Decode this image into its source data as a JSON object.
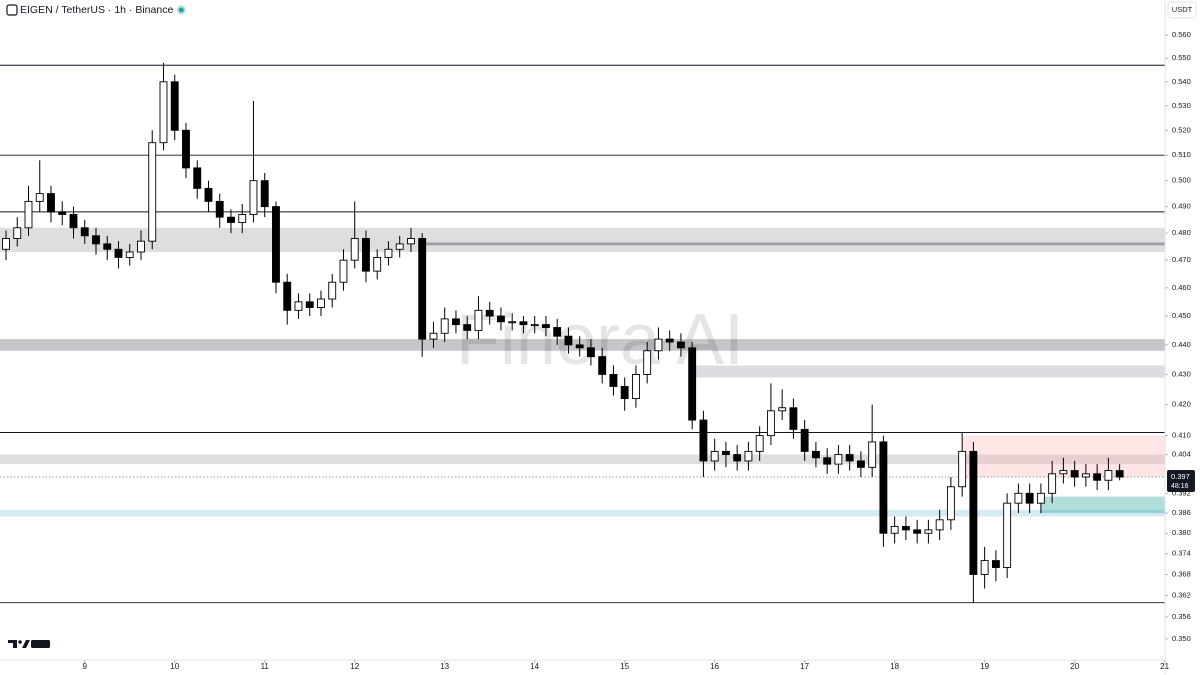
{
  "chart_data": {
    "type": "candlestick",
    "title": "EIGEN / TetherUS · 1h · Binance",
    "currency": "USDT",
    "watermark": "Finora AI",
    "countdown": "48:16",
    "log_scale": true,
    "up_color": "#ffffff",
    "down_color": "#000000",
    "x": [
      -21,
      -18,
      -15,
      -12,
      -9,
      -6,
      -3,
      0,
      3,
      6,
      9,
      12,
      15,
      18,
      21,
      24,
      27,
      30,
      33,
      36,
      39,
      42,
      45,
      48,
      51,
      54,
      57,
      60,
      63,
      66,
      69,
      72,
      75,
      78,
      81,
      84,
      87,
      90,
      93,
      96,
      99,
      102,
      105,
      108,
      111,
      114,
      117,
      120,
      123,
      126,
      129,
      132,
      135,
      138,
      141,
      144,
      147,
      150,
      153,
      156,
      159,
      162,
      165,
      168,
      171,
      174,
      177,
      180,
      183,
      186,
      189,
      192,
      195,
      198,
      201,
      204,
      207,
      210,
      213,
      216,
      219,
      222,
      225,
      228,
      231,
      234,
      237,
      240,
      243,
      246,
      249,
      252,
      255,
      258,
      261,
      264,
      267,
      270,
      273,
      276
    ],
    "open": [
      0.474,
      0.478,
      0.482,
      0.492,
      0.495,
      0.488,
      0.487,
      0.482,
      0.479,
      0.476,
      0.474,
      0.471,
      0.473,
      0.477,
      0.515,
      0.54,
      0.52,
      0.505,
      0.497,
      0.492,
      0.486,
      0.484,
      0.487,
      0.5,
      0.49,
      0.462,
      0.452,
      0.455,
      0.453,
      0.456,
      0.462,
      0.47,
      0.478,
      0.466,
      0.471,
      0.474,
      0.476,
      0.478,
      0.442,
      0.444,
      0.449,
      0.447,
      0.445,
      0.452,
      0.45,
      0.448,
      0.448,
      0.447,
      0.447,
      0.446,
      0.443,
      0.44,
      0.439,
      0.436,
      0.43,
      0.426,
      0.422,
      0.43,
      0.438,
      0.442,
      0.441,
      0.439,
      0.415,
      0.402,
      0.405,
      0.404,
      0.402,
      0.405,
      0.41,
      0.418,
      0.419,
      0.412,
      0.405,
      0.403,
      0.401,
      0.404,
      0.402,
      0.4,
      0.408,
      0.38,
      0.382,
      0.381,
      0.38,
      0.381,
      0.384,
      0.394,
      0.405,
      0.368,
      0.372,
      0.37,
      0.389,
      0.392,
      0.389,
      0.392,
      0.398,
      0.399,
      0.397,
      0.398,
      0.396,
      0.399
    ],
    "high": [
      0.481,
      0.486,
      0.498,
      0.508,
      0.498,
      0.492,
      0.49,
      0.485,
      0.482,
      0.479,
      0.477,
      0.476,
      0.481,
      0.52,
      0.548,
      0.543,
      0.523,
      0.508,
      0.5,
      0.495,
      0.489,
      0.491,
      0.532,
      0.503,
      0.492,
      0.465,
      0.458,
      0.458,
      0.459,
      0.465,
      0.474,
      0.492,
      0.481,
      0.474,
      0.477,
      0.479,
      0.482,
      0.48,
      0.448,
      0.453,
      0.452,
      0.45,
      0.457,
      0.455,
      0.453,
      0.451,
      0.45,
      0.45,
      0.45,
      0.449,
      0.446,
      0.443,
      0.442,
      0.439,
      0.433,
      0.429,
      0.433,
      0.441,
      0.446,
      0.445,
      0.444,
      0.441,
      0.418,
      0.409,
      0.408,
      0.407,
      0.408,
      0.413,
      0.427,
      0.425,
      0.422,
      0.415,
      0.408,
      0.406,
      0.407,
      0.407,
      0.405,
      0.42,
      0.41,
      0.385,
      0.385,
      0.384,
      0.384,
      0.387,
      0.397,
      0.411,
      0.408,
      0.376,
      0.375,
      0.392,
      0.395,
      0.395,
      0.395,
      0.402,
      0.403,
      0.402,
      0.401,
      0.401,
      0.403,
      0.401
    ],
    "low": [
      0.47,
      0.475,
      0.479,
      0.488,
      0.484,
      0.483,
      0.478,
      0.476,
      0.472,
      0.47,
      0.467,
      0.468,
      0.47,
      0.474,
      0.512,
      0.516,
      0.501,
      0.493,
      0.488,
      0.482,
      0.48,
      0.48,
      0.484,
      0.486,
      0.458,
      0.447,
      0.449,
      0.45,
      0.45,
      0.453,
      0.459,
      0.467,
      0.462,
      0.463,
      0.468,
      0.471,
      0.473,
      0.436,
      0.439,
      0.441,
      0.444,
      0.442,
      0.442,
      0.447,
      0.445,
      0.445,
      0.444,
      0.444,
      0.443,
      0.44,
      0.437,
      0.436,
      0.433,
      0.427,
      0.423,
      0.418,
      0.419,
      0.427,
      0.435,
      0.438,
      0.436,
      0.412,
      0.397,
      0.399,
      0.4,
      0.399,
      0.399,
      0.402,
      0.407,
      0.415,
      0.409,
      0.402,
      0.4,
      0.398,
      0.398,
      0.399,
      0.397,
      0.397,
      0.376,
      0.377,
      0.378,
      0.377,
      0.377,
      0.378,
      0.381,
      0.391,
      0.36,
      0.364,
      0.366,
      0.367,
      0.386,
      0.386,
      0.386,
      0.389,
      0.395,
      0.394,
      0.394,
      0.393,
      0.393,
      0.396
    ],
    "close": [
      0.478,
      0.482,
      0.492,
      0.495,
      0.488,
      0.487,
      0.482,
      0.479,
      0.476,
      0.474,
      0.471,
      0.473,
      0.477,
      0.515,
      0.54,
      0.52,
      0.505,
      0.497,
      0.492,
      0.486,
      0.484,
      0.487,
      0.5,
      0.49,
      0.462,
      0.452,
      0.455,
      0.453,
      0.456,
      0.462,
      0.47,
      0.478,
      0.466,
      0.471,
      0.474,
      0.476,
      0.478,
      0.442,
      0.444,
      0.449,
      0.447,
      0.445,
      0.452,
      0.45,
      0.448,
      0.448,
      0.447,
      0.447,
      0.446,
      0.443,
      0.44,
      0.439,
      0.436,
      0.43,
      0.426,
      0.422,
      0.43,
      0.438,
      0.442,
      0.441,
      0.439,
      0.415,
      0.402,
      0.405,
      0.404,
      0.402,
      0.405,
      0.41,
      0.418,
      0.419,
      0.412,
      0.405,
      0.403,
      0.401,
      0.404,
      0.402,
      0.4,
      0.408,
      0.38,
      0.382,
      0.381,
      0.38,
      0.381,
      0.384,
      0.394,
      0.405,
      0.368,
      0.372,
      0.37,
      0.389,
      0.392,
      0.389,
      0.392,
      0.398,
      0.399,
      0.397,
      0.398,
      0.396,
      0.399,
      0.397
    ],
    "levels": [
      0.547,
      0.51,
      0.488,
      0.411,
      0.36
    ],
    "zones": [
      {
        "low": 0.473,
        "high": 0.482,
        "from": -22.6,
        "color": "rgba(170,172,178,0.4)"
      },
      {
        "low": 0.4755,
        "high": 0.4765,
        "from": 89.0,
        "color": "rgba(110,100,120,0.55)"
      },
      {
        "low": 0.438,
        "high": 0.442,
        "from": -22.6,
        "color": "rgba(150,152,158,0.55)"
      },
      {
        "low": 0.429,
        "high": 0.433,
        "from": 161.0,
        "color": "rgba(170,168,185,0.4)"
      },
      {
        "low": 0.401,
        "high": 0.404,
        "from": -22.6,
        "color": "rgba(170,172,178,0.4)"
      },
      {
        "low": 0.397,
        "high": 0.41,
        "from": 234.0,
        "color": "rgba(255,170,170,0.3)"
      },
      {
        "low": 0.385,
        "high": 0.387,
        "from": -22.6,
        "color": "rgba(160,210,230,0.45)"
      },
      {
        "low": 0.386,
        "high": 0.391,
        "from": 255.0,
        "color": "rgba(0,150,136,0.3)"
      }
    ],
    "xlim": [
      -22.6,
      288.1
    ],
    "ylim": [
      0.3443,
      0.5755
    ],
    "xticks": [
      {
        "value": 0,
        "label": "9"
      },
      {
        "value": 24,
        "label": "10"
      },
      {
        "value": 48,
        "label": "11"
      },
      {
        "value": 72,
        "label": "12"
      },
      {
        "value": 96,
        "label": "13"
      },
      {
        "value": 120,
        "label": "14"
      },
      {
        "value": 144,
        "label": "15"
      },
      {
        "value": 168,
        "label": "16"
      },
      {
        "value": 192,
        "label": "17"
      },
      {
        "value": 216,
        "label": "18"
      },
      {
        "value": 240,
        "label": "19"
      },
      {
        "value": 264,
        "label": "20"
      },
      {
        "value": 288,
        "label": "21"
      }
    ],
    "yticks": [
      {
        "value": 0.56,
        "label": "0.560"
      },
      {
        "value": 0.55,
        "label": "0.550"
      },
      {
        "value": 0.54,
        "label": "0.540"
      },
      {
        "value": 0.53,
        "label": "0.530"
      },
      {
        "value": 0.52,
        "label": "0.520"
      },
      {
        "value": 0.51,
        "label": "0.510"
      },
      {
        "value": 0.5,
        "label": "0.500"
      },
      {
        "value": 0.49,
        "label": "0.490"
      },
      {
        "value": 0.48,
        "label": "0.480"
      },
      {
        "value": 0.47,
        "label": "0.470"
      },
      {
        "value": 0.46,
        "label": "0.460"
      },
      {
        "value": 0.45,
        "label": "0.450"
      },
      {
        "value": 0.44,
        "label": "0.440"
      },
      {
        "value": 0.43,
        "label": "0.430"
      },
      {
        "value": 0.42,
        "label": "0.420"
      },
      {
        "value": 0.41,
        "label": "0.410"
      },
      0.404,
      0.392,
      0.386,
      {
        "value": 0.38,
        "label": "0.380"
      },
      0.374,
      0.368,
      0.362,
      0.356,
      {
        "value": 0.35,
        "label": "0.350"
      }
    ]
  }
}
